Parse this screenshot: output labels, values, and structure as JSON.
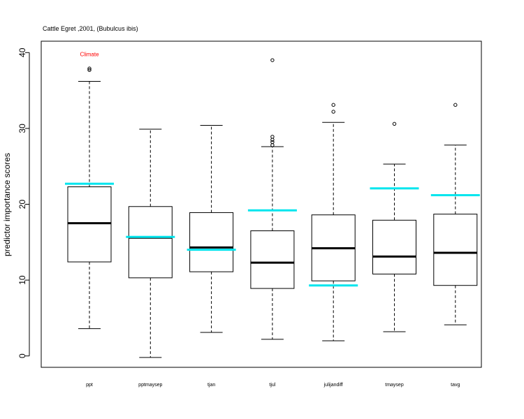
{
  "chart_data": {
    "type": "box",
    "title": "Cattle Egret ,2001, (Bubulcus ibis)",
    "ylabel": "predictor importance scores",
    "xlabel": "",
    "ylim": [
      -1.5,
      41.5
    ],
    "yticks": [
      0,
      10,
      20,
      30,
      40
    ],
    "grid": false,
    "annotation": {
      "text": "Climate",
      "category": "ppt",
      "y": 39.8,
      "color": "#ff0000"
    },
    "highlight_color": "#00e5ee",
    "categories": [
      "ppt",
      "pptmaysep",
      "tjan",
      "tjul",
      "julijandiff",
      "tmaysep",
      "tavg"
    ],
    "boxes": [
      {
        "whisker_low": 3.6,
        "q1": 12.4,
        "median": 17.5,
        "q3": 22.3,
        "whisker_high": 36.2,
        "outliers": [
          37.7,
          37.9
        ],
        "highlight": 22.7
      },
      {
        "whisker_low": -0.2,
        "q1": 10.3,
        "median": 15.6,
        "q3": 19.7,
        "whisker_high": 29.9,
        "outliers": [],
        "highlight": 15.7
      },
      {
        "whisker_low": 3.1,
        "q1": 11.1,
        "median": 14.3,
        "q3": 18.9,
        "whisker_high": 30.4,
        "outliers": [],
        "highlight": 14.0
      },
      {
        "whisker_low": 2.2,
        "q1": 8.9,
        "median": 12.3,
        "q3": 16.5,
        "whisker_high": 27.6,
        "outliers": [
          27.8,
          28.2,
          28.5,
          28.9,
          39.0
        ],
        "highlight": 19.2
      },
      {
        "whisker_low": 2.0,
        "q1": 9.9,
        "median": 14.2,
        "q3": 18.6,
        "whisker_high": 30.8,
        "outliers": [
          32.2,
          33.1
        ],
        "highlight": 9.3
      },
      {
        "whisker_low": 3.2,
        "q1": 10.8,
        "median": 13.1,
        "q3": 17.9,
        "whisker_high": 25.3,
        "outliers": [
          30.6
        ],
        "highlight": 22.1
      },
      {
        "whisker_low": 4.1,
        "q1": 9.3,
        "median": 13.6,
        "q3": 18.7,
        "whisker_high": 27.8,
        "outliers": [
          33.1
        ],
        "highlight": 21.2
      }
    ]
  }
}
